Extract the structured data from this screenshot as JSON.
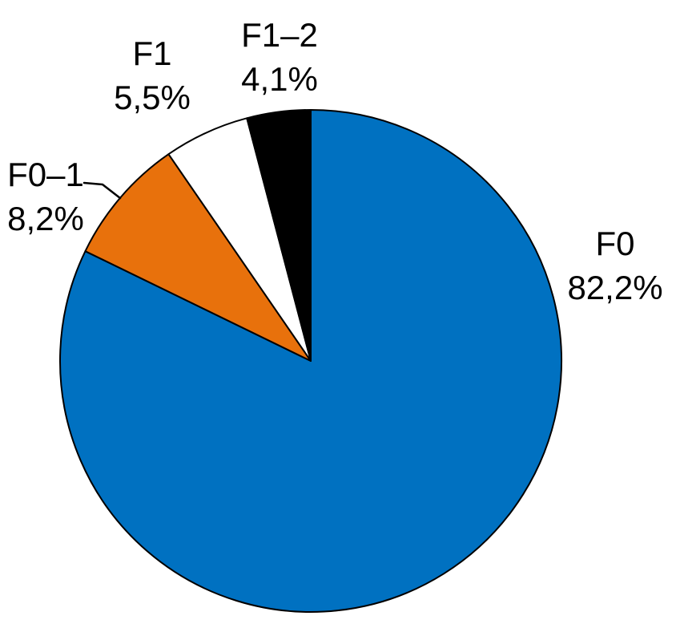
{
  "chart_data": {
    "type": "pie",
    "title": "",
    "categories": [
      "F0",
      "F0–1",
      "F1",
      "F1–2"
    ],
    "values": [
      82.2,
      8.2,
      5.5,
      4.1
    ],
    "value_labels": [
      "82,2%",
      "8,2%",
      "5,5%",
      "4,1%"
    ],
    "slices": [
      {
        "label": "F0",
        "value_pct": 82.2,
        "value_label": "82,2%",
        "color": "#0071C1"
      },
      {
        "label": "F0–1",
        "value_pct": 8.2,
        "value_label": "8,2%",
        "color": "#E8710C"
      },
      {
        "label": "F1",
        "value_pct": 5.5,
        "value_label": "5,5%",
        "color": "#FFFFFF"
      },
      {
        "label": "F1–2",
        "value_pct": 4.1,
        "value_label": "4,1%",
        "color": "#000000"
      }
    ],
    "start_angle_deg": 0,
    "direction": "clockwise",
    "stroke_color": "#000000",
    "text_color": "#000000",
    "background": "#FFFFFF",
    "legend_position": "none",
    "labels_outside": true,
    "leader_line_slice": "F0–1",
    "decimal_separator": ","
  }
}
